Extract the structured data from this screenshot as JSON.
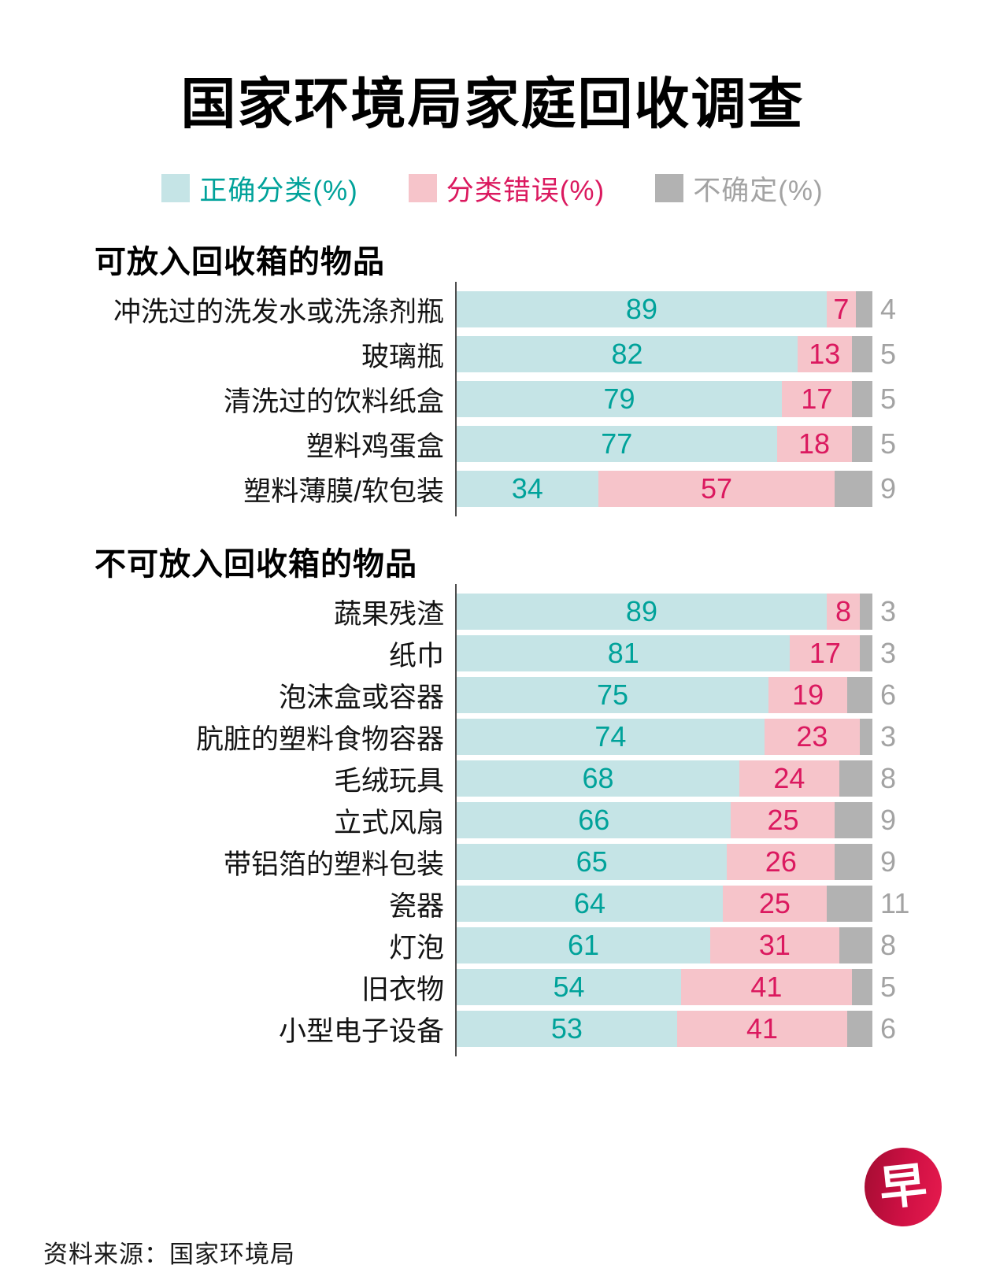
{
  "title": "国家环境局家庭回收调查",
  "legend": [
    {
      "label": "正确分类(%)",
      "swatch": "#c5e4e6",
      "text_color": "#00a29a"
    },
    {
      "label": "分类错误(%)",
      "swatch": "#f6c4ca",
      "text_color": "#db195f"
    },
    {
      "label": "不确定(%)",
      "swatch": "#b2b2b2",
      "text_color": "#a3a3a3"
    }
  ],
  "chart_data": {
    "type": "bar",
    "variant": "stacked-horizontal-percent",
    "series_names": [
      "正确分类(%)",
      "分类错误(%)",
      "不确定(%)"
    ],
    "series_keys": [
      "correct",
      "wrong",
      "unsure"
    ],
    "colors": {
      "correct_fill": "#c5e4e6",
      "correct_text": "#00a29a",
      "wrong_fill": "#f6c4ca",
      "wrong_text": "#db195f",
      "unsure_fill": "#b2b2b2",
      "unsure_text": "#a3a3a3",
      "axis_line": "#4d4d4d"
    },
    "layout_hints": {
      "orientation": "horizontal",
      "value_range": [
        0,
        100
      ],
      "grid": false,
      "legend_position": "top",
      "unsure_value_label_position": "outside-right"
    },
    "sections": [
      {
        "header": "可放入回收箱的物品",
        "rows": [
          {
            "label": "冲洗过的洗发水或洗涤剂瓶",
            "values": [
              89,
              7,
              4
            ]
          },
          {
            "label": "玻璃瓶",
            "values": [
              82,
              13,
              5
            ]
          },
          {
            "label": "清洗过的饮料纸盒",
            "values": [
              79,
              17,
              5
            ]
          },
          {
            "label": "塑料鸡蛋盒",
            "values": [
              77,
              18,
              5
            ]
          },
          {
            "label": "塑料薄膜/软包装",
            "values": [
              34,
              57,
              9
            ]
          }
        ]
      },
      {
        "header": "不可放入回收箱的物品",
        "rows": [
          {
            "label": "蔬果残渣",
            "values": [
              89,
              8,
              3
            ]
          },
          {
            "label": "纸巾",
            "values": [
              81,
              17,
              3
            ]
          },
          {
            "label": "泡沫盒或容器",
            "values": [
              75,
              19,
              6
            ]
          },
          {
            "label": "肮脏的塑料食物容器",
            "values": [
              74,
              23,
              3
            ]
          },
          {
            "label": "毛绒玩具",
            "values": [
              68,
              24,
              8
            ]
          },
          {
            "label": "立式风扇",
            "values": [
              66,
              25,
              9
            ]
          },
          {
            "label": "带铝箔的塑料包装",
            "values": [
              65,
              26,
              9
            ]
          },
          {
            "label": "瓷器",
            "values": [
              64,
              25,
              11
            ]
          },
          {
            "label": "灯泡",
            "values": [
              61,
              31,
              8
            ]
          },
          {
            "label": "旧衣物",
            "values": [
              54,
              41,
              5
            ]
          },
          {
            "label": "小型电子设备",
            "values": [
              53,
              41,
              6
            ]
          }
        ]
      }
    ]
  },
  "source": "资料来源：国家环境局",
  "logo": {
    "text": "早",
    "bg": "#cf1044"
  }
}
